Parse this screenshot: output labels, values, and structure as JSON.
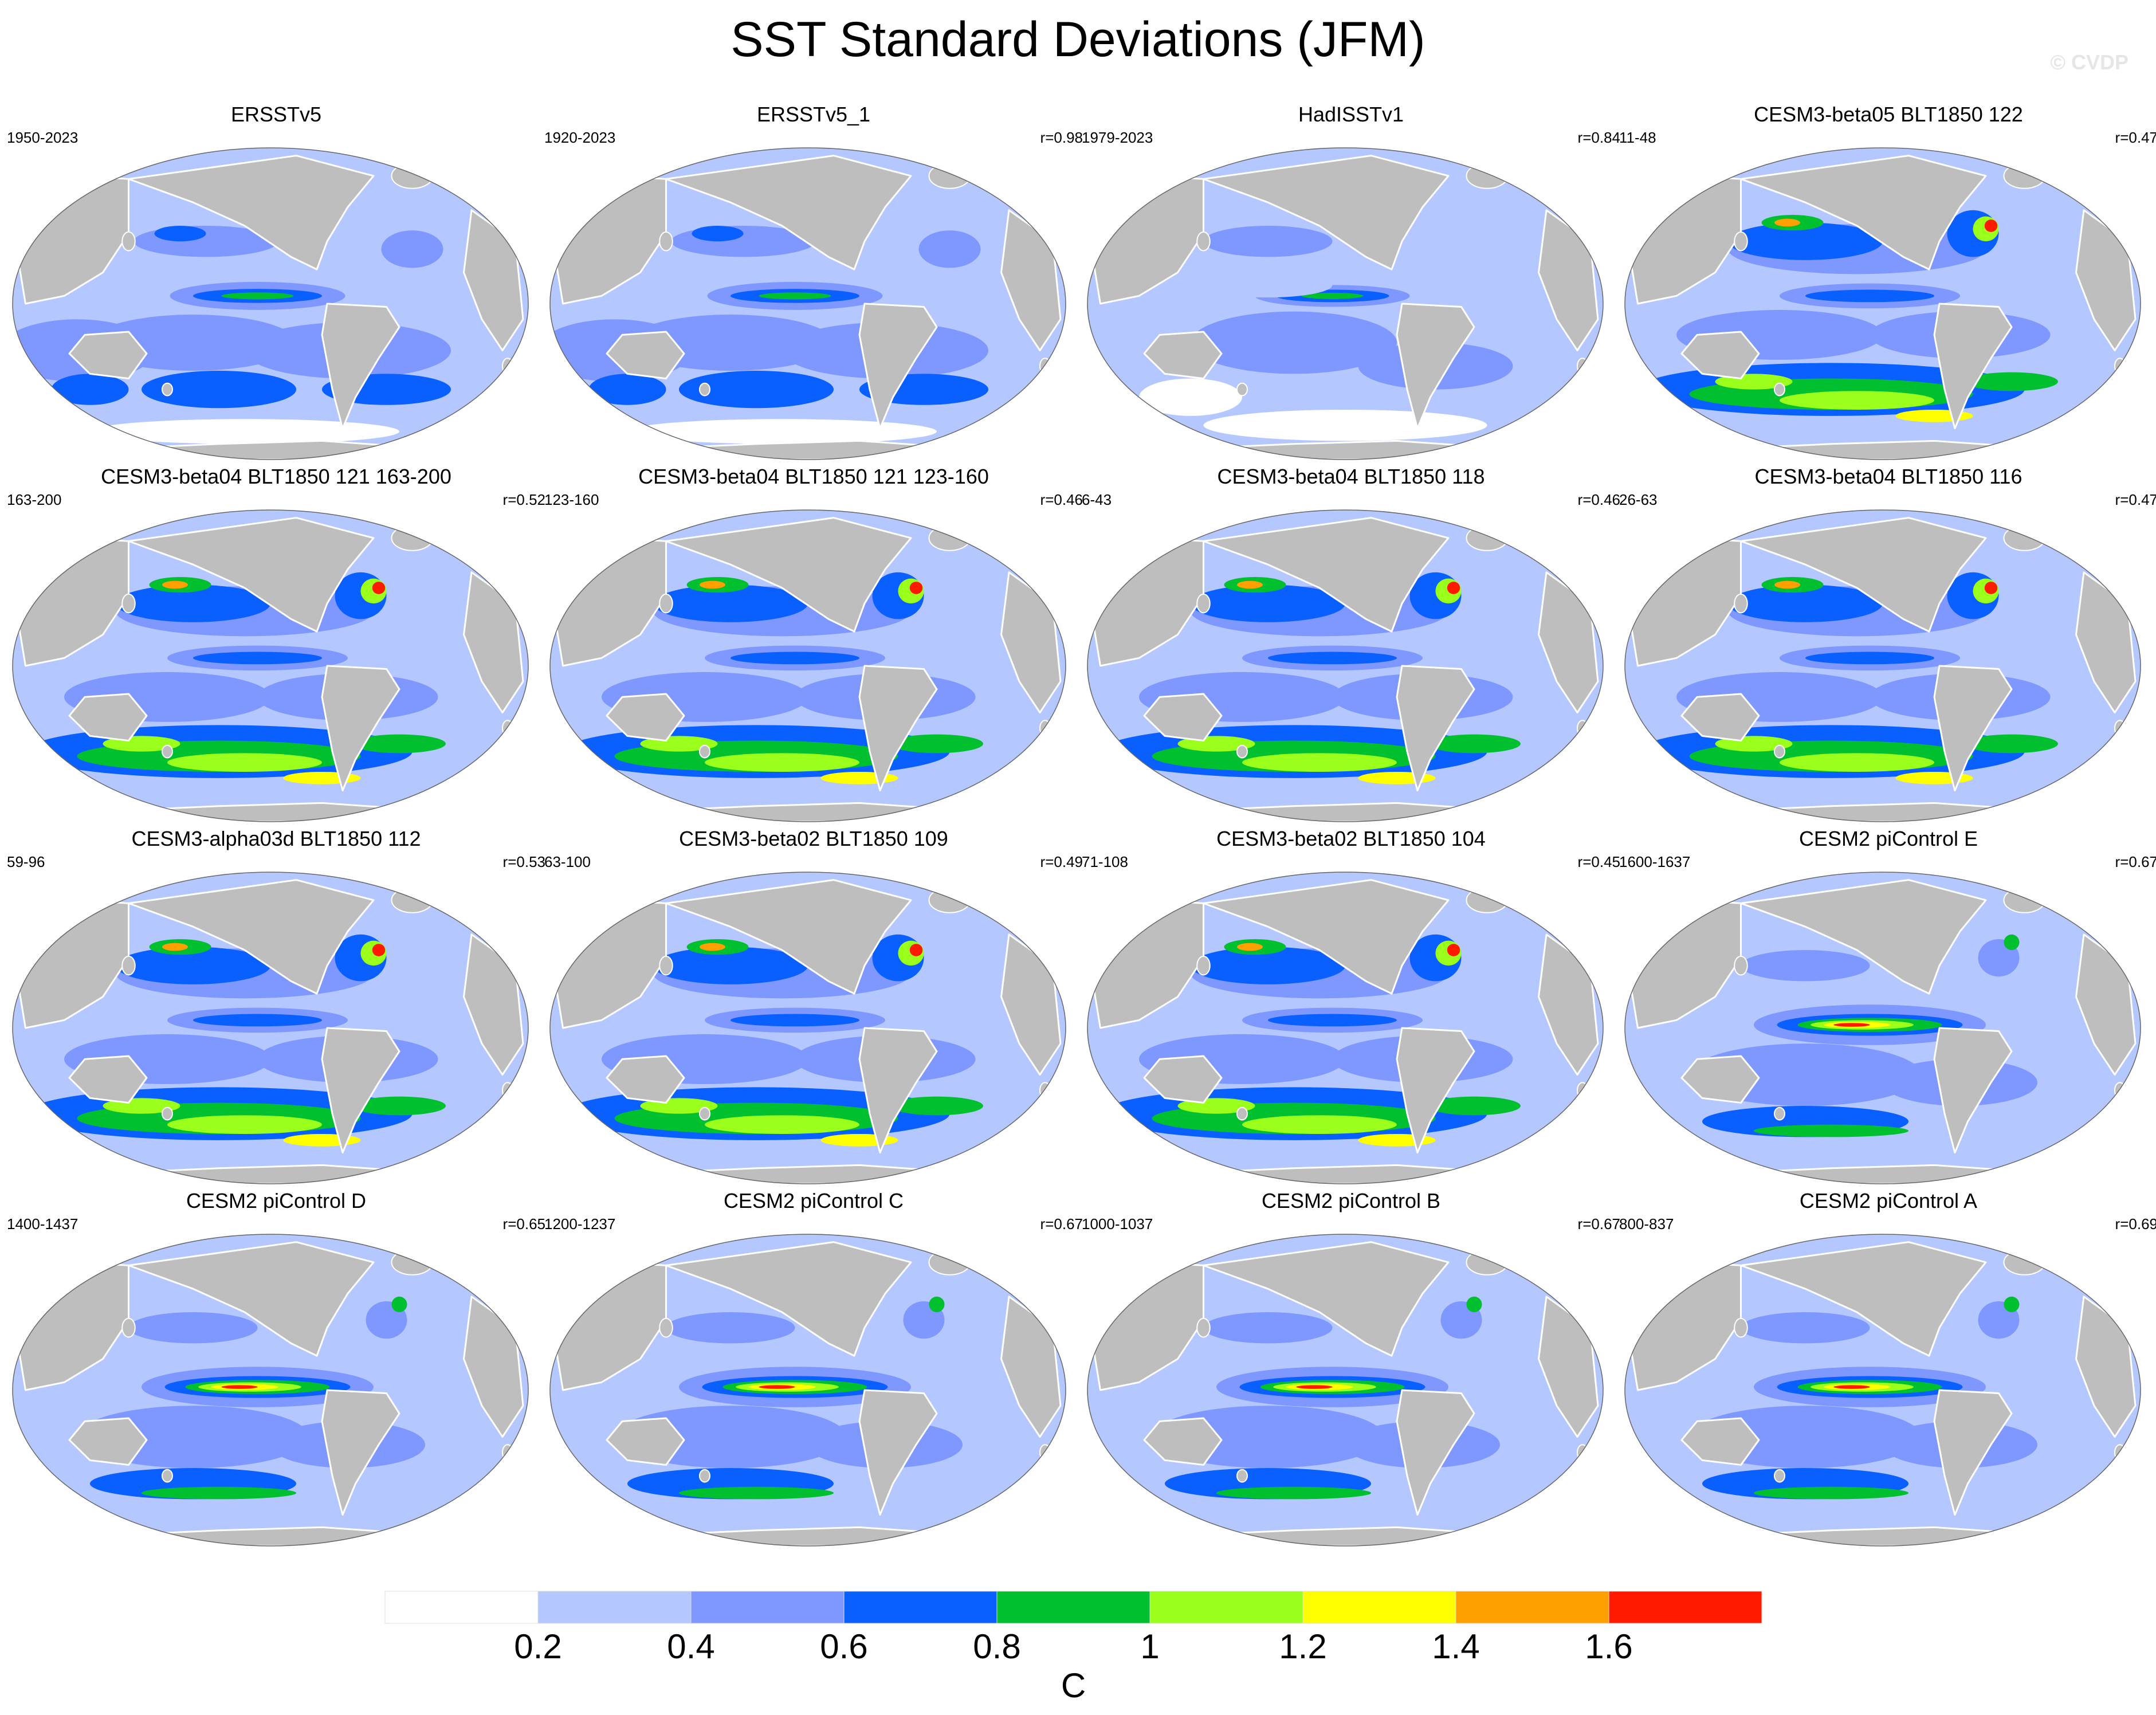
{
  "title": "SST Standard Deviations (JFM)",
  "watermark": "© CVDP",
  "colors": {
    "land": "#bebebe",
    "coast": "#ffffff",
    "levels": [
      "#ffffff",
      "#b4c8ff",
      "#7e98ff",
      "#0a5fff",
      "#00c030",
      "#9aff1a",
      "#ffff00",
      "#ffa000",
      "#ff1a00"
    ]
  },
  "panels": [
    {
      "title": "ERSSTv5",
      "period": "1950-2023",
      "r": "",
      "style": "obs"
    },
    {
      "title": "ERSSTv5_1",
      "period": "1920-2023",
      "r": "r=0.98",
      "style": "obs"
    },
    {
      "title": "HadISSTv1",
      "period": "1979-2023",
      "r": "r=0.84",
      "style": "had"
    },
    {
      "title": "CESM3-beta05 BLT1850 122",
      "period": "11-48",
      "r": "r=0.47",
      "style": "cesm3"
    },
    {
      "title": "CESM3-beta04 BLT1850 121 163-200",
      "period": "163-200",
      "r": "r=0.52",
      "style": "cesm3"
    },
    {
      "title": "CESM3-beta04 BLT1850 121 123-160",
      "period": "123-160",
      "r": "r=0.46",
      "style": "cesm3"
    },
    {
      "title": "CESM3-beta04 BLT1850 118",
      "period": "6-43",
      "r": "r=0.46",
      "style": "cesm3"
    },
    {
      "title": "CESM3-beta04 BLT1850 116",
      "period": "26-63",
      "r": "r=0.47",
      "style": "cesm3"
    },
    {
      "title": "CESM3-alpha03d BLT1850 112",
      "period": "59-96",
      "r": "r=0.53",
      "style": "cesm3"
    },
    {
      "title": "CESM3-beta02 BLT1850 109",
      "period": "63-100",
      "r": "r=0.49",
      "style": "cesm3"
    },
    {
      "title": "CESM3-beta02 BLT1850 104",
      "period": "71-108",
      "r": "r=0.45",
      "style": "cesm3"
    },
    {
      "title": "CESM2 piControl E",
      "period": "1600-1637",
      "r": "r=0.67",
      "style": "cesm2"
    },
    {
      "title": "CESM2 piControl D",
      "period": "1400-1437",
      "r": "r=0.65",
      "style": "cesm2"
    },
    {
      "title": "CESM2 piControl C",
      "period": "1200-1237",
      "r": "r=0.67",
      "style": "cesm2"
    },
    {
      "title": "CESM2 piControl B",
      "period": "1000-1037",
      "r": "r=0.67",
      "style": "cesm2"
    },
    {
      "title": "CESM2 piControl A",
      "period": "800-837",
      "r": "r=0.69",
      "style": "cesm2"
    }
  ],
  "colorbar": {
    "ticks": [
      "0.2",
      "0.4",
      "0.6",
      "0.8",
      "1",
      "1.2",
      "1.4",
      "1.6"
    ],
    "units": "C"
  }
}
